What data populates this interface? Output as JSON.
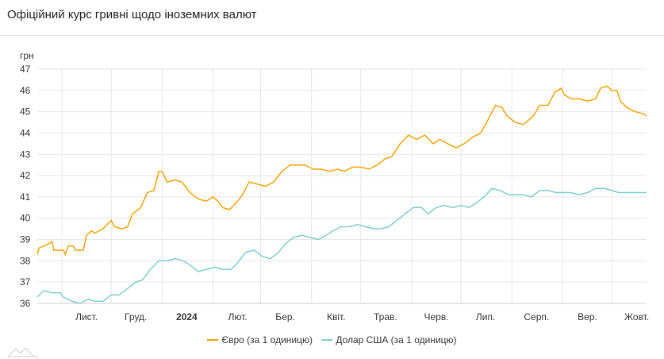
{
  "title": "Офіційний курс гривні щодо іноземних валют",
  "chart_data": {
    "type": "line",
    "title": "Офіційний курс гривні щодо іноземних валют",
    "ylabel": "грн",
    "xlabel": "",
    "ylim": [
      36,
      47
    ],
    "yticks": [
      36,
      37,
      38,
      39,
      40,
      41,
      42,
      43,
      44,
      45,
      46,
      47
    ],
    "xlim": [
      0,
      371
    ],
    "xunit": "days since 2023-10-17",
    "month_starts": [
      15,
      45,
      76,
      107,
      136,
      167,
      197,
      228,
      258,
      289,
      320,
      350
    ],
    "xticks": [
      {
        "day": 15,
        "label": "Лист.",
        "bold": false
      },
      {
        "day": 45,
        "label": "Груд.",
        "bold": false
      },
      {
        "day": 76,
        "label": "2024",
        "bold": true
      },
      {
        "day": 107,
        "label": "Лют.",
        "bold": false
      },
      {
        "day": 136,
        "label": "Бер.",
        "bold": false
      },
      {
        "day": 167,
        "label": "Квіт.",
        "bold": false
      },
      {
        "day": 197,
        "label": "Трав.",
        "bold": false
      },
      {
        "day": 228,
        "label": "Черв.",
        "bold": false
      },
      {
        "day": 258,
        "label": "Лип.",
        "bold": false
      },
      {
        "day": 289,
        "label": "Серп.",
        "bold": false
      },
      {
        "day": 320,
        "label": "Вер.",
        "bold": false
      },
      {
        "day": 350,
        "label": "Жовт.",
        "bold": false
      }
    ],
    "grid": true,
    "legend_position": "bottom",
    "series": [
      {
        "name": "Євро (за 1 одиницю)",
        "color": "#f0a30a",
        "points": [
          [
            0,
            38.3
          ],
          [
            1,
            38.6
          ],
          [
            7,
            38.8
          ],
          [
            9,
            38.9
          ],
          [
            10,
            38.5
          ],
          [
            16,
            38.5
          ],
          [
            17,
            38.3
          ],
          [
            19,
            38.7
          ],
          [
            22,
            38.7
          ],
          [
            23,
            38.5
          ],
          [
            28,
            38.5
          ],
          [
            30,
            39.2
          ],
          [
            33,
            39.4
          ],
          [
            35,
            39.3
          ],
          [
            40,
            39.5
          ],
          [
            45,
            39.9
          ],
          [
            47,
            39.6
          ],
          [
            52,
            39.5
          ],
          [
            55,
            39.6
          ],
          [
            58,
            40.2
          ],
          [
            63,
            40.5
          ],
          [
            67,
            41.2
          ],
          [
            71,
            41.3
          ],
          [
            74,
            42.2
          ],
          [
            76,
            42.2
          ],
          [
            79,
            41.7
          ],
          [
            84,
            41.8
          ],
          [
            88,
            41.7
          ],
          [
            93,
            41.2
          ],
          [
            98,
            40.9
          ],
          [
            103,
            40.8
          ],
          [
            107,
            41.0
          ],
          [
            110,
            40.8
          ],
          [
            113,
            40.5
          ],
          [
            117,
            40.4
          ],
          [
            122,
            40.8
          ],
          [
            125,
            41.1
          ],
          [
            129,
            41.7
          ],
          [
            134,
            41.6
          ],
          [
            139,
            41.5
          ],
          [
            144,
            41.7
          ],
          [
            149,
            42.2
          ],
          [
            154,
            42.5
          ],
          [
            158,
            42.5
          ],
          [
            163,
            42.5
          ],
          [
            168,
            42.3
          ],
          [
            173,
            42.3
          ],
          [
            178,
            42.2
          ],
          [
            183,
            42.3
          ],
          [
            187,
            42.2
          ],
          [
            192,
            42.4
          ],
          [
            197,
            42.4
          ],
          [
            202,
            42.3
          ],
          [
            207,
            42.5
          ],
          [
            212,
            42.8
          ],
          [
            216,
            42.9
          ],
          [
            221,
            43.5
          ],
          [
            226,
            43.9
          ],
          [
            231,
            43.7
          ],
          [
            236,
            43.9
          ],
          [
            241,
            43.5
          ],
          [
            245,
            43.7
          ],
          [
            250,
            43.5
          ],
          [
            255,
            43.3
          ],
          [
            260,
            43.5
          ],
          [
            265,
            43.8
          ],
          [
            270,
            44.0
          ],
          [
            273,
            44.4
          ],
          [
            277,
            45.0
          ],
          [
            279,
            45.3
          ],
          [
            283,
            45.2
          ],
          [
            286,
            44.8
          ],
          [
            291,
            44.5
          ],
          [
            296,
            44.4
          ],
          [
            299,
            44.6
          ],
          [
            302,
            44.8
          ],
          [
            306,
            45.3
          ],
          [
            311,
            45.3
          ],
          [
            315,
            45.9
          ],
          [
            319,
            46.1
          ],
          [
            321,
            45.8
          ],
          [
            325,
            45.6
          ],
          [
            330,
            45.6
          ],
          [
            335,
            45.5
          ],
          [
            340,
            45.6
          ],
          [
            343,
            46.1
          ],
          [
            347,
            46.2
          ],
          [
            350,
            46.0
          ],
          [
            353,
            46.0
          ],
          [
            355,
            45.5
          ],
          [
            359,
            45.2
          ],
          [
            364,
            45.0
          ],
          [
            369,
            44.9
          ],
          [
            371,
            44.8
          ]
        ]
      },
      {
        "name": "Долар США (за 1 одиницю)",
        "color": "#7fcdcd",
        "points": [
          [
            0,
            36.3
          ],
          [
            4,
            36.6
          ],
          [
            9,
            36.5
          ],
          [
            14,
            36.5
          ],
          [
            16,
            36.3
          ],
          [
            21,
            36.1
          ],
          [
            26,
            36.0
          ],
          [
            31,
            36.2
          ],
          [
            35,
            36.1
          ],
          [
            40,
            36.1
          ],
          [
            45,
            36.4
          ],
          [
            50,
            36.4
          ],
          [
            55,
            36.7
          ],
          [
            60,
            37.0
          ],
          [
            64,
            37.1
          ],
          [
            69,
            37.6
          ],
          [
            74,
            38.0
          ],
          [
            79,
            38.0
          ],
          [
            84,
            38.1
          ],
          [
            89,
            38.0
          ],
          [
            93,
            37.8
          ],
          [
            98,
            37.5
          ],
          [
            103,
            37.6
          ],
          [
            108,
            37.7
          ],
          [
            113,
            37.6
          ],
          [
            118,
            37.6
          ],
          [
            122,
            37.9
          ],
          [
            127,
            38.4
          ],
          [
            132,
            38.5
          ],
          [
            137,
            38.2
          ],
          [
            142,
            38.1
          ],
          [
            147,
            38.4
          ],
          [
            151,
            38.8
          ],
          [
            156,
            39.1
          ],
          [
            161,
            39.2
          ],
          [
            166,
            39.1
          ],
          [
            171,
            39.0
          ],
          [
            176,
            39.2
          ],
          [
            180,
            39.4
          ],
          [
            185,
            39.6
          ],
          [
            190,
            39.6
          ],
          [
            195,
            39.7
          ],
          [
            200,
            39.6
          ],
          [
            205,
            39.5
          ],
          [
            209,
            39.5
          ],
          [
            214,
            39.6
          ],
          [
            219,
            39.9
          ],
          [
            224,
            40.2
          ],
          [
            229,
            40.5
          ],
          [
            234,
            40.5
          ],
          [
            238,
            40.2
          ],
          [
            243,
            40.5
          ],
          [
            248,
            40.6
          ],
          [
            253,
            40.5
          ],
          [
            258,
            40.6
          ],
          [
            263,
            40.5
          ],
          [
            267,
            40.7
          ],
          [
            272,
            41.0
          ],
          [
            277,
            41.4
          ],
          [
            282,
            41.3
          ],
          [
            287,
            41.1
          ],
          [
            292,
            41.1
          ],
          [
            296,
            41.1
          ],
          [
            301,
            41.0
          ],
          [
            306,
            41.3
          ],
          [
            311,
            41.3
          ],
          [
            316,
            41.2
          ],
          [
            321,
            41.2
          ],
          [
            325,
            41.2
          ],
          [
            330,
            41.1
          ],
          [
            335,
            41.2
          ],
          [
            340,
            41.4
          ],
          [
            345,
            41.4
          ],
          [
            350,
            41.3
          ],
          [
            354,
            41.2
          ],
          [
            359,
            41.2
          ],
          [
            364,
            41.2
          ],
          [
            371,
            41.2
          ]
        ]
      }
    ]
  }
}
